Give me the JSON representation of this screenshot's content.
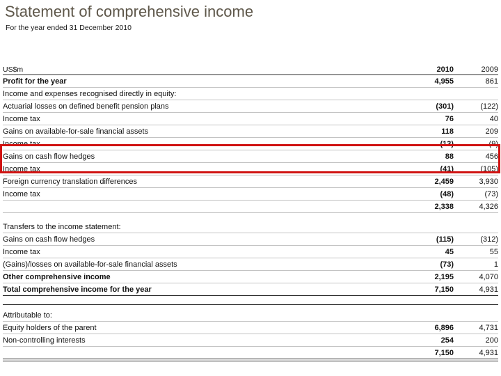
{
  "slide": {
    "title": "Statement of comprehensive income",
    "subtitle": "For the year ended 31 December 2010"
  },
  "table": {
    "unit": "US$m",
    "columns": [
      "2010",
      "2009"
    ],
    "highlight_border_color": "#d01312",
    "rows": [
      {
        "label": "Profit for the year",
        "y2010": "4,955",
        "y2009": "861",
        "bold": true
      },
      {
        "label": "Income and expenses recognised directly in equity:",
        "y2010": "",
        "y2009": ""
      },
      {
        "label": "Actuarial losses on defined benefit pension plans",
        "y2010": "(301)",
        "y2009": "(122)"
      },
      {
        "label": "Income tax",
        "y2010": "76",
        "y2009": "40"
      },
      {
        "label": "Gains on available-for-sale financial assets",
        "y2010": "118",
        "y2009": "209"
      },
      {
        "label": "Income tax",
        "y2010": "(13)",
        "y2009": "(9)",
        "struck": true
      },
      {
        "label": "Gains on cash flow hedges",
        "y2010": "88",
        "y2009": "456",
        "highlight": true
      },
      {
        "label": "Income tax",
        "y2010": "(41)",
        "y2009": "(105)",
        "struck": true
      },
      {
        "label": "Foreign currency translation differences",
        "y2010": "2,459",
        "y2009": "3,930"
      },
      {
        "label": "Income tax",
        "y2010": "(48)",
        "y2009": "(73)"
      },
      {
        "label": "",
        "y2010": "2,338",
        "y2009": "4,326"
      },
      {
        "label": "Transfers to the income statement:",
        "y2010": "",
        "y2009": "",
        "gap_before": true
      },
      {
        "label": "Gains on cash flow hedges",
        "y2010": "(115)",
        "y2009": "(312)"
      },
      {
        "label": "Income tax",
        "y2010": "45",
        "y2009": "55"
      },
      {
        "label": "(Gains)/losses on available-for-sale financial assets",
        "y2010": "(73)",
        "y2009": "1"
      },
      {
        "label": "Other comprehensive income",
        "y2010": "2,195",
        "y2009": "4,070",
        "bold": true
      },
      {
        "label": "Total comprehensive income for the year",
        "y2010": "7,150",
        "y2009": "4,931",
        "bold": true,
        "dark_under": true
      },
      {
        "label": "Attributable to:",
        "y2010": "",
        "y2009": "",
        "band_before": true
      },
      {
        "label": "Equity holders of the parent",
        "y2010": "6,896",
        "y2009": "4,731"
      },
      {
        "label": "Non-controlling interests",
        "y2010": "254",
        "y2009": "200"
      },
      {
        "label": "",
        "y2010": "7,150",
        "y2009": "4,931",
        "dark_under": true,
        "double_under": true
      }
    ]
  }
}
